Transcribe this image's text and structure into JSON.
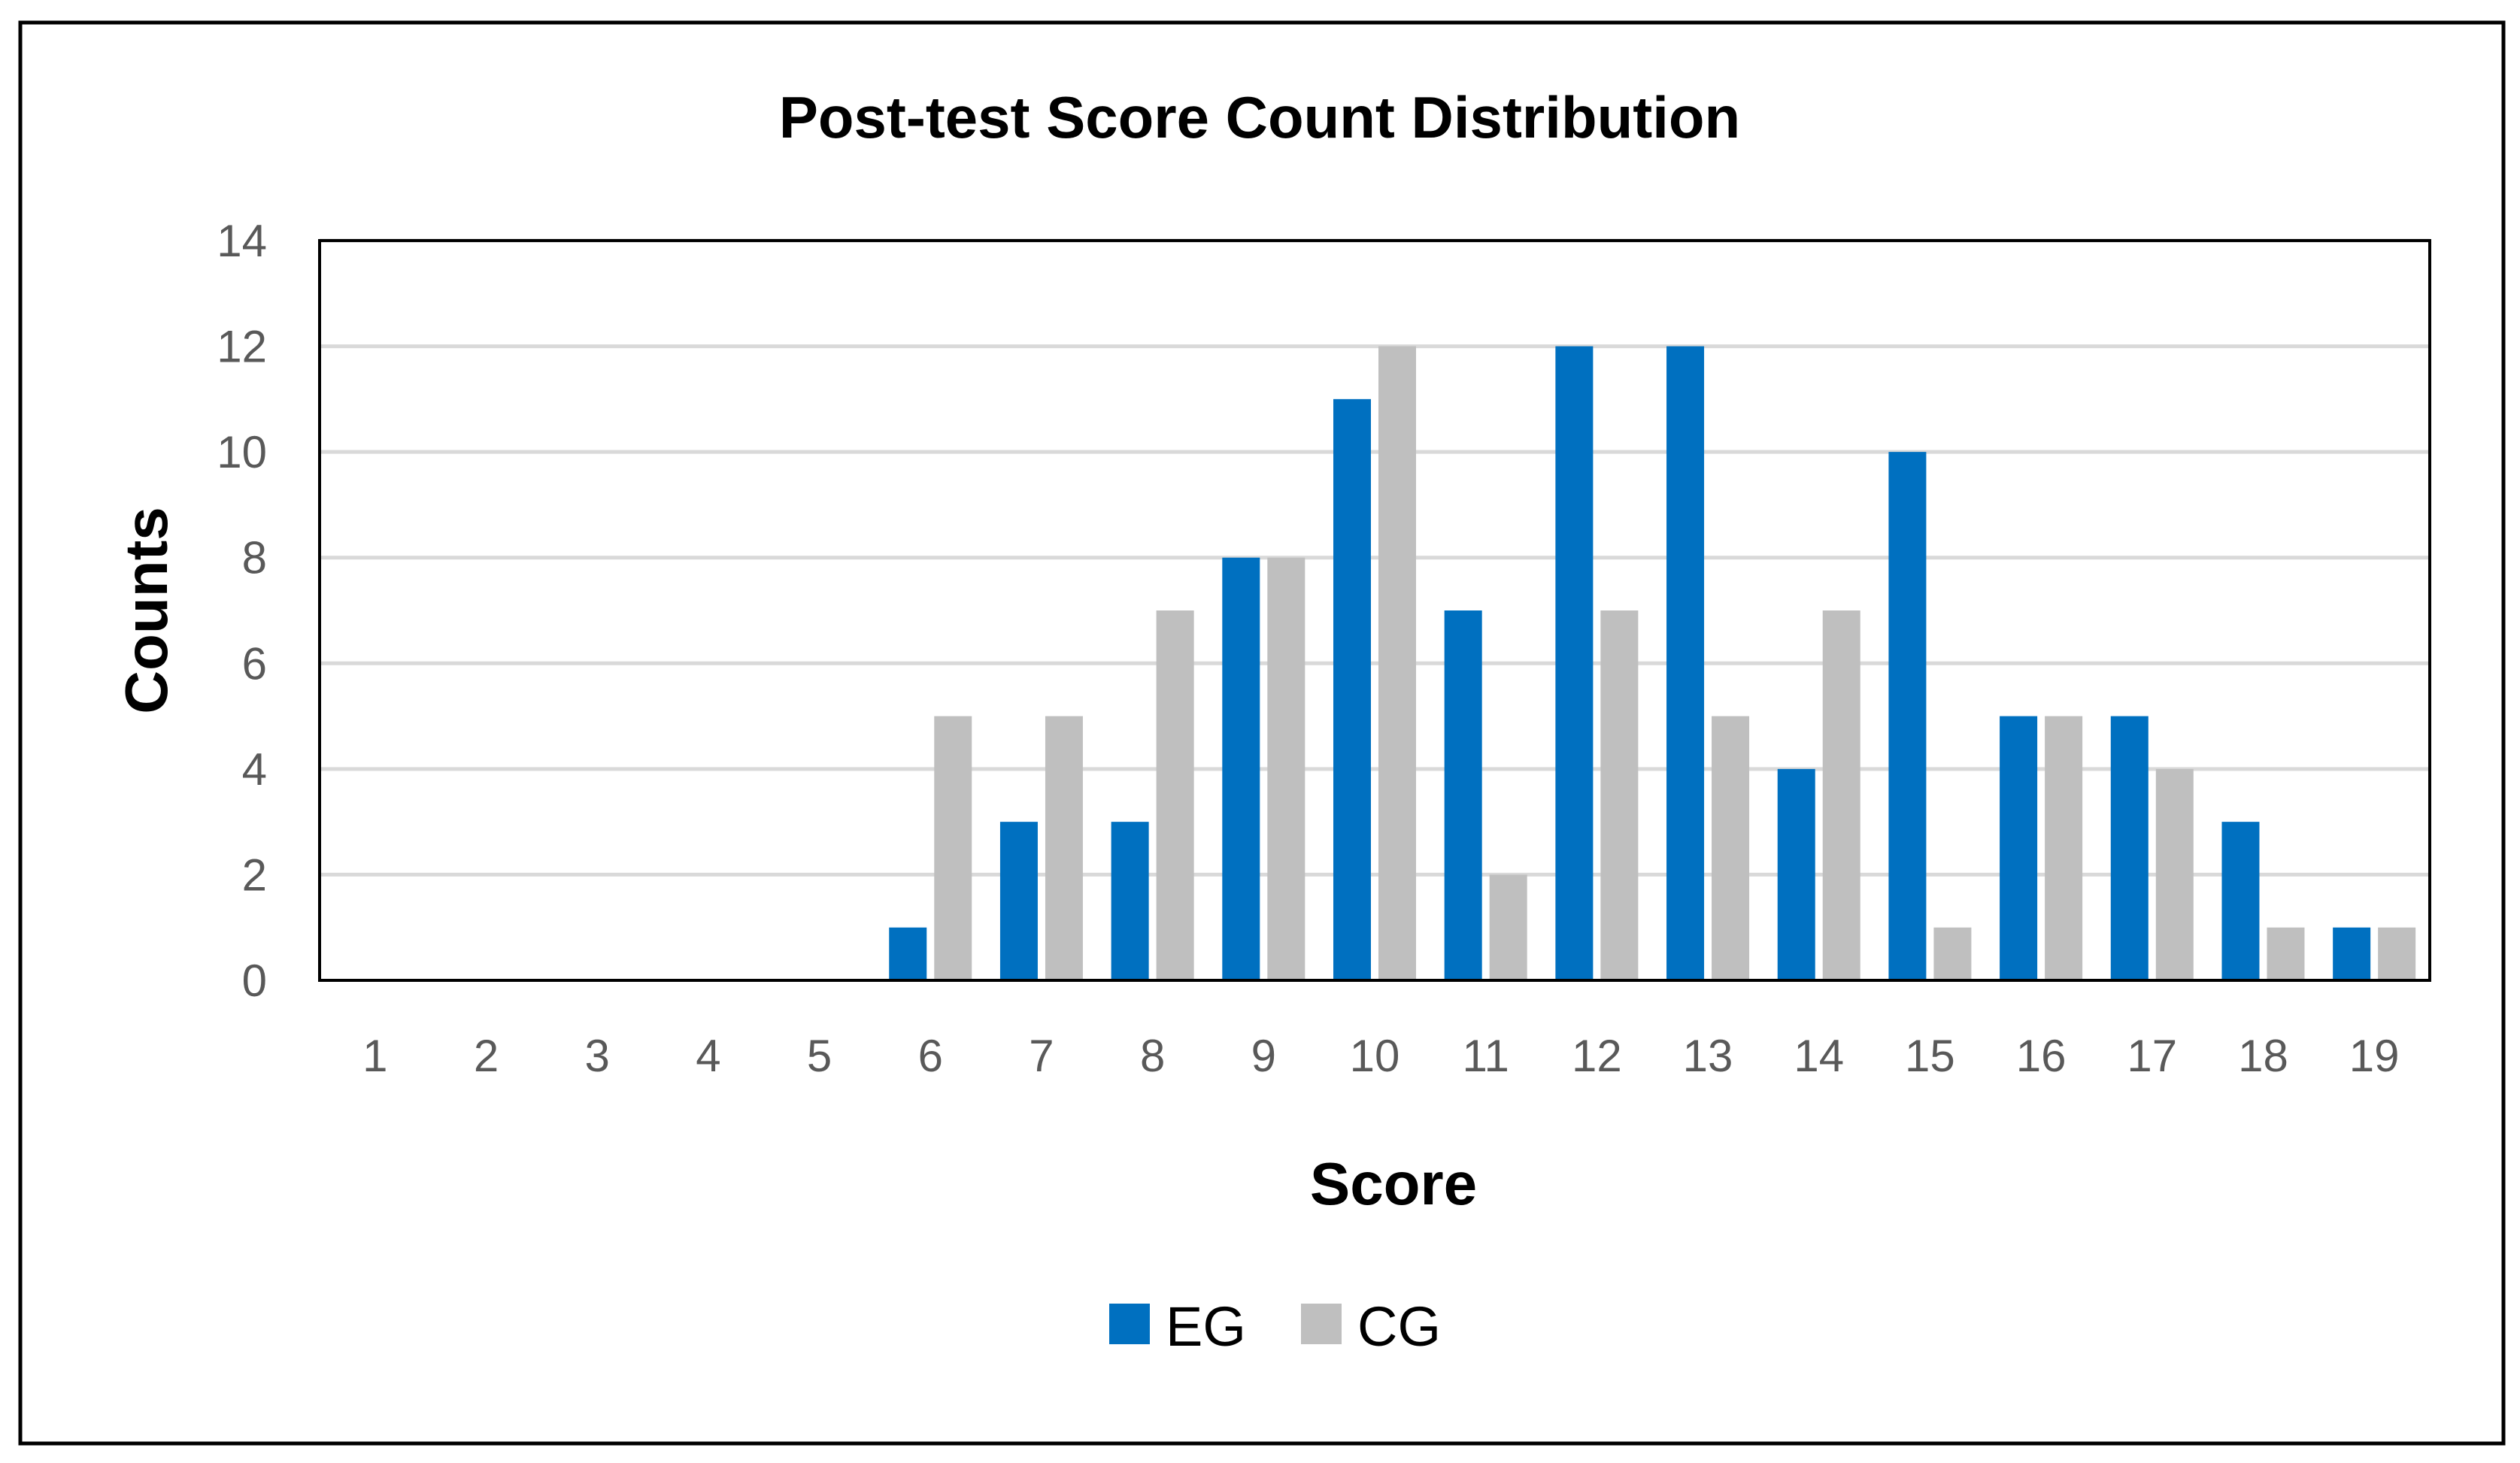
{
  "chart_data": {
    "type": "bar",
    "title": "Post-test Score Count Distribution",
    "xlabel": "Score",
    "ylabel": "Counts",
    "categories": [
      "1",
      "2",
      "3",
      "4",
      "5",
      "6",
      "7",
      "8",
      "9",
      "10",
      "11",
      "12",
      "13",
      "14",
      "15",
      "16",
      "17",
      "18",
      "19"
    ],
    "series": [
      {
        "name": "EG",
        "color": "#0070C0",
        "values": [
          0,
          0,
          0,
          0,
          0,
          1,
          3,
          3,
          8,
          11,
          7,
          12,
          12,
          4,
          10,
          5,
          5,
          3,
          1
        ]
      },
      {
        "name": "CG",
        "color": "#BFBFBF",
        "values": [
          0,
          0,
          0,
          0,
          0,
          5,
          5,
          7,
          8,
          12,
          2,
          7,
          5,
          7,
          1,
          5,
          4,
          1,
          1
        ]
      }
    ],
    "ylim": [
      0,
      14
    ],
    "yticks": [
      0,
      2,
      4,
      6,
      8,
      10,
      12,
      14
    ],
    "grid": true,
    "legend": "bottom",
    "gridline_color": "#D9D9D9"
  }
}
